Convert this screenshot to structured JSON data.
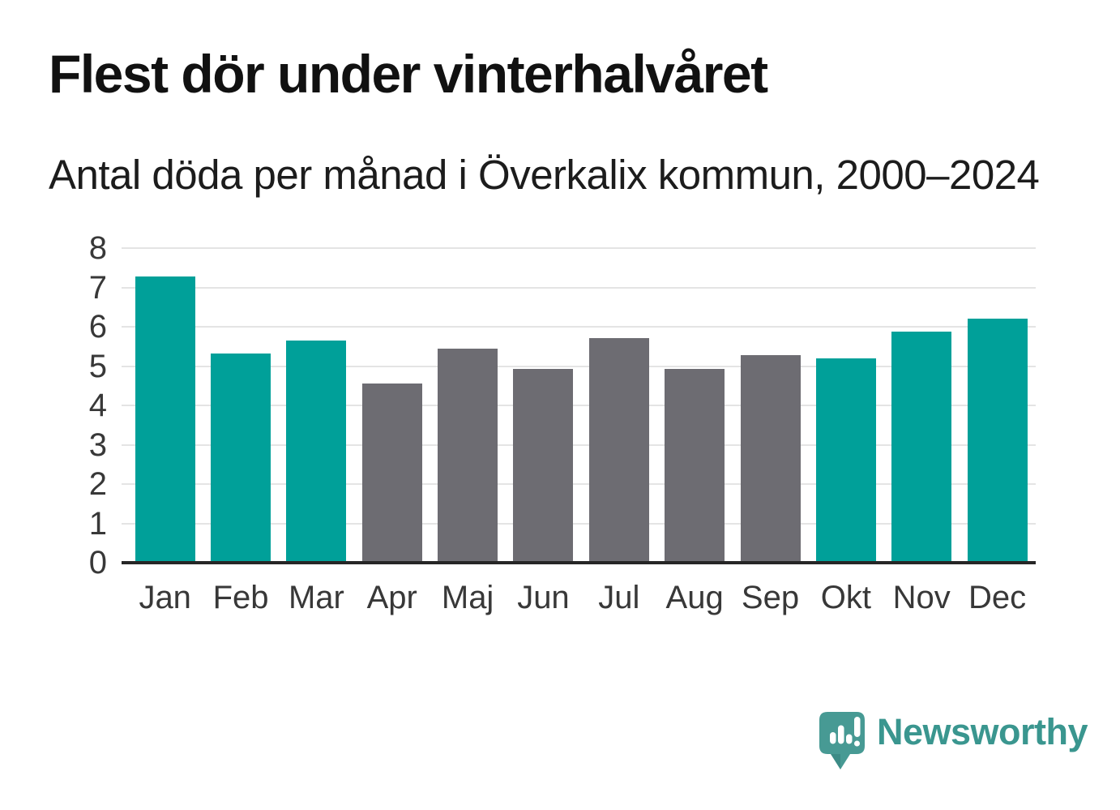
{
  "header": {
    "title": "Flest dör under vinterhalvåret",
    "subtitle": "Antal döda per månad i Överkalix kommun, 2000–2024"
  },
  "chart_data": {
    "type": "bar",
    "title": "Flest dör under vinterhalvåret",
    "subtitle": "Antal döda per månad i Överkalix kommun, 2000–2024",
    "categories": [
      "Jan",
      "Feb",
      "Mar",
      "Apr",
      "Maj",
      "Jun",
      "Jul",
      "Aug",
      "Sep",
      "Okt",
      "Nov",
      "Dec"
    ],
    "values": [
      7.28,
      5.32,
      5.64,
      4.56,
      5.44,
      4.92,
      5.72,
      4.92,
      5.28,
      5.2,
      5.88,
      6.2
    ],
    "highlighted": [
      true,
      true,
      true,
      false,
      false,
      false,
      false,
      false,
      false,
      true,
      true,
      true
    ],
    "xlabel": "",
    "ylabel": "",
    "ylim": [
      0,
      8
    ],
    "yticks": [
      0,
      1,
      2,
      3,
      4,
      5,
      6,
      7,
      8
    ],
    "grid": true,
    "legend": "none",
    "colors": {
      "highlight": "#00a099",
      "default": "#6d6c72",
      "gridline": "#e4e4e4",
      "axis_line": "#262626",
      "tick_label": "#383838"
    }
  },
  "branding": {
    "logo_text": "Newsworthy",
    "logo_text_color": "#3a968f",
    "logo_icon_color": "#479a94",
    "logo_icon_glyph_color": "#ffffff"
  }
}
